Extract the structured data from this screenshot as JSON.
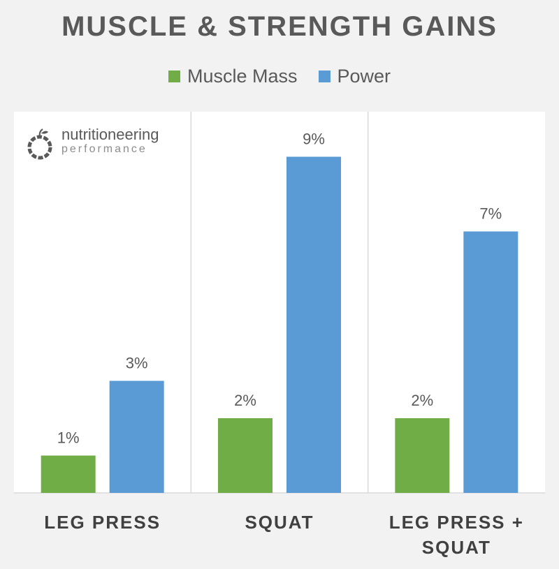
{
  "chart_data": {
    "type": "bar",
    "title": "MUSCLE & STRENGTH GAINS",
    "categories": [
      "LEG PRESS",
      "SQUAT",
      "LEG PRESS +\nSQUAT"
    ],
    "series": [
      {
        "name": "Muscle Mass",
        "color": "#70ad47",
        "values": [
          1,
          2,
          2
        ],
        "labels": [
          "1%",
          "2%",
          "2%"
        ]
      },
      {
        "name": "Power",
        "color": "#5b9bd5",
        "values": [
          3,
          9,
          7
        ],
        "labels": [
          "3%",
          "9%",
          "7%"
        ]
      }
    ],
    "ylim": [
      0,
      10
    ],
    "grid": false,
    "legend": "top-center",
    "xlabel": "",
    "ylabel": ""
  },
  "logo": {
    "name": "nutritioneering",
    "tagline": "performance"
  }
}
